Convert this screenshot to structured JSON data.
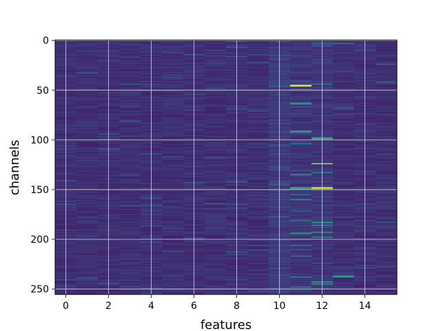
{
  "chart_data": {
    "type": "heatmap",
    "title": "",
    "xlabel": "features",
    "ylabel": "channels",
    "x_ticks": [
      0,
      2,
      4,
      6,
      8,
      10,
      12,
      14
    ],
    "y_ticks": [
      0,
      50,
      100,
      150,
      200,
      250
    ],
    "xlim": [
      -0.5,
      15.5
    ],
    "ylim": [
      255.5,
      -0.5
    ],
    "grid": true,
    "colormap": "viridis",
    "n_features": 16,
    "n_channels": 256,
    "base_value": 0.1,
    "highlights": [
      {
        "feature": 11,
        "channel": 45,
        "value": 0.95
      },
      {
        "feature": 11,
        "channel": 46,
        "value": 0.9
      },
      {
        "feature": 11,
        "channel": 63,
        "value": 0.55
      },
      {
        "feature": 11,
        "channel": 64,
        "value": 0.5
      },
      {
        "feature": 11,
        "channel": 91,
        "value": 0.55
      },
      {
        "feature": 11,
        "channel": 92,
        "value": 0.5
      },
      {
        "feature": 11,
        "channel": 104,
        "value": 0.45
      },
      {
        "feature": 11,
        "channel": 135,
        "value": 0.5
      },
      {
        "feature": 11,
        "channel": 148,
        "value": 0.6
      },
      {
        "feature": 11,
        "channel": 149,
        "value": 0.55
      },
      {
        "feature": 11,
        "channel": 155,
        "value": 0.4
      },
      {
        "feature": 11,
        "channel": 160,
        "value": 0.5
      },
      {
        "feature": 11,
        "channel": 181,
        "value": 0.45
      },
      {
        "feature": 11,
        "channel": 194,
        "value": 0.6
      },
      {
        "feature": 11,
        "channel": 206,
        "value": 0.45
      },
      {
        "feature": 11,
        "channel": 217,
        "value": 0.4
      },
      {
        "feature": 11,
        "channel": 238,
        "value": 0.5
      },
      {
        "feature": 11,
        "channel": 248,
        "value": 0.45
      },
      {
        "feature": 12,
        "channel": 44,
        "value": 0.4
      },
      {
        "feature": 12,
        "channel": 98,
        "value": 0.6
      },
      {
        "feature": 12,
        "channel": 99,
        "value": 0.55
      },
      {
        "feature": 12,
        "channel": 124,
        "value": 0.9
      },
      {
        "feature": 12,
        "channel": 133,
        "value": 0.5
      },
      {
        "feature": 12,
        "channel": 148,
        "value": 0.95
      },
      {
        "feature": 12,
        "channel": 149,
        "value": 0.85
      },
      {
        "feature": 12,
        "channel": 183,
        "value": 0.55
      },
      {
        "feature": 12,
        "channel": 186,
        "value": 0.5
      },
      {
        "feature": 12,
        "channel": 193,
        "value": 0.55
      },
      {
        "feature": 12,
        "channel": 198,
        "value": 0.5
      },
      {
        "feature": 12,
        "channel": 243,
        "value": 0.6
      },
      {
        "feature": 12,
        "channel": 245,
        "value": 0.55
      },
      {
        "feature": 13,
        "channel": 3,
        "value": 0.45
      },
      {
        "feature": 13,
        "channel": 237,
        "value": 0.55
      },
      {
        "feature": 13,
        "channel": 238,
        "value": 0.5
      },
      {
        "feature": 15,
        "channel": 42,
        "value": 0.35
      },
      {
        "feature": 8,
        "channel": 142,
        "value": 0.35
      },
      {
        "feature": 7,
        "channel": 164,
        "value": 0.35
      },
      {
        "feature": 3,
        "channel": 44,
        "value": 0.35
      },
      {
        "feature": 4,
        "channel": 166,
        "value": 0.3
      }
    ]
  }
}
